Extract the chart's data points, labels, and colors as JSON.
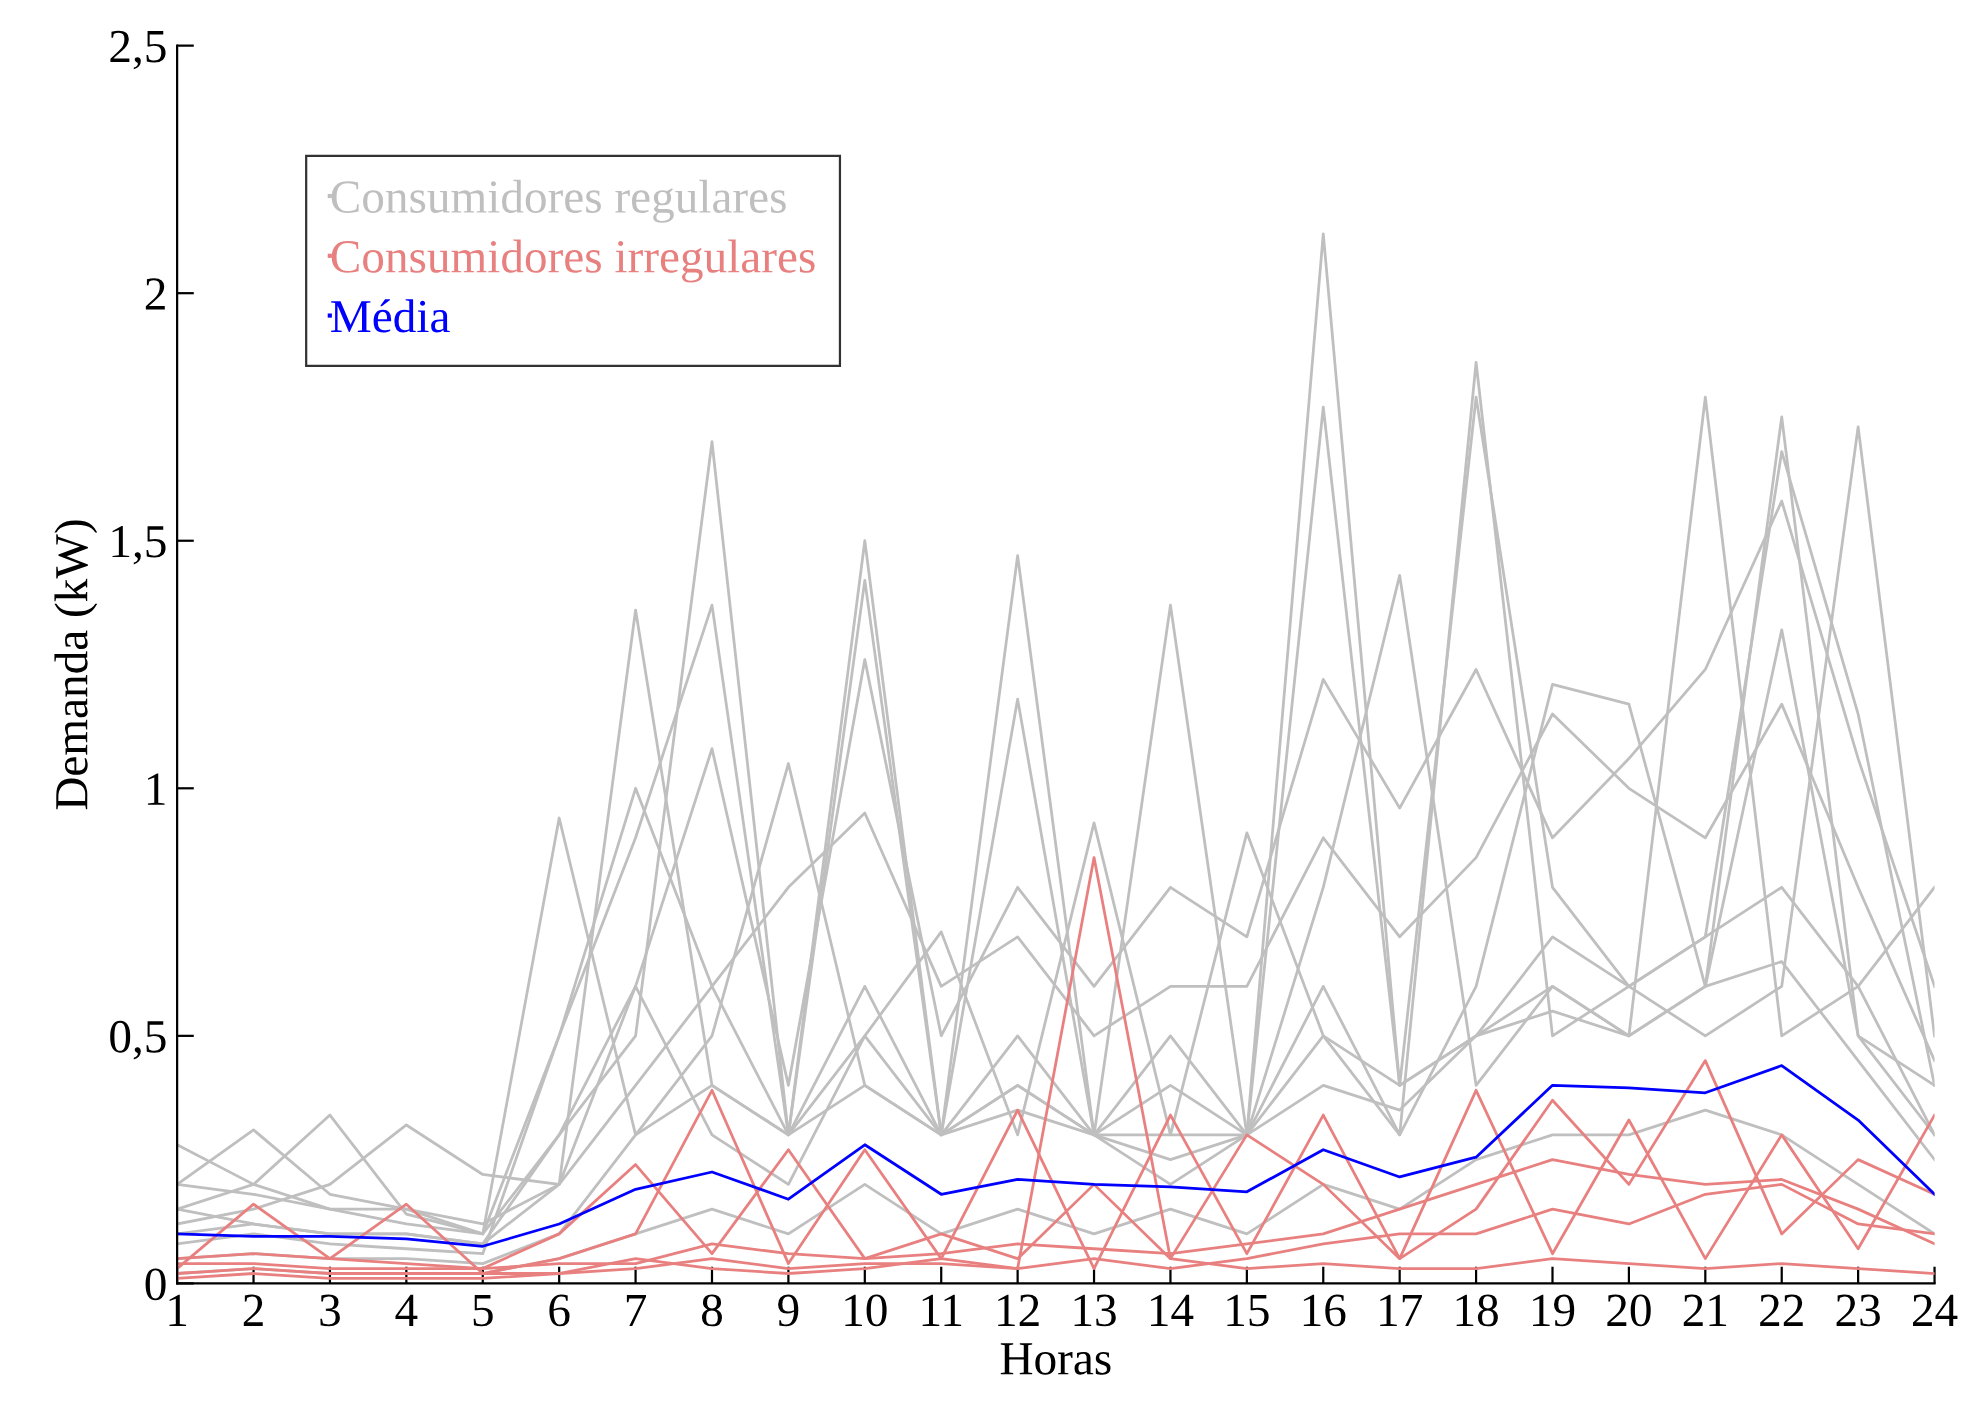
{
  "chart_data": {
    "type": "line",
    "xlabel": "Horas",
    "ylabel": "Demanda (kW)",
    "x": [
      1,
      2,
      3,
      4,
      5,
      6,
      7,
      8,
      9,
      10,
      11,
      12,
      13,
      14,
      15,
      16,
      17,
      18,
      19,
      20,
      21,
      22,
      23,
      24
    ],
    "xlim": [
      1,
      24
    ],
    "xticks": [
      1,
      2,
      3,
      4,
      5,
      6,
      7,
      8,
      9,
      10,
      11,
      12,
      13,
      14,
      15,
      16,
      17,
      18,
      19,
      20,
      21,
      22,
      23,
      24
    ],
    "ylim": [
      0,
      2.5
    ],
    "yticks": [
      0,
      {
        "value": 0.5,
        "label": "0,5"
      },
      1,
      {
        "value": 1.5,
        "label": "1,5"
      },
      2,
      {
        "value": 2.5,
        "label": "2,5"
      }
    ],
    "grid": false,
    "legend": "top left",
    "marker": "none",
    "line_style": "solid",
    "series": [
      {
        "name": "Consumidores regulares",
        "color": "#bfbfbf",
        "values": [
          0.28,
          0.2,
          0.15,
          0.12,
          0.1,
          0.3,
          0.5,
          1.7,
          0.3,
          0.4,
          0.3,
          0.5,
          0.3,
          0.2,
          0.3,
          2.12,
          0.4,
          0.5,
          0.6,
          0.5,
          0.6,
          1.75,
          0.5,
          0.4
        ]
      },
      {
        "color": "#bfbfbf",
        "values": [
          0.2,
          0.31,
          0.18,
          0.15,
          0.12,
          0.2,
          1.36,
          0.4,
          0.3,
          1.5,
          0.3,
          0.35,
          0.3,
          0.25,
          0.3,
          0.6,
          0.3,
          1.86,
          0.5,
          0.6,
          0.5,
          0.6,
          1.73,
          0.5
        ]
      },
      {
        "color": "#bfbfbf",
        "values": [
          0.15,
          0.2,
          0.34,
          0.14,
          0.1,
          0.94,
          0.3,
          0.5,
          1.05,
          0.4,
          0.3,
          1.47,
          0.3,
          1.37,
          0.3,
          0.8,
          1.43,
          0.4,
          0.6,
          0.5,
          1.79,
          0.5,
          0.6,
          0.8
        ]
      },
      {
        "color": "#bfbfbf",
        "values": [
          0.12,
          0.15,
          0.2,
          0.32,
          0.22,
          0.2,
          0.6,
          0.3,
          0.2,
          0.5,
          0.71,
          0.3,
          0.93,
          0.3,
          0.91,
          0.5,
          0.3,
          0.6,
          1.21,
          1.17,
          0.6,
          1.32,
          0.5,
          0.3
        ]
      },
      {
        "color": "#bfbfbf",
        "values": [
          0.2,
          0.18,
          0.15,
          0.15,
          0.1,
          0.5,
          0.9,
          1.37,
          0.3,
          1.42,
          0.3,
          1.18,
          0.3,
          0.5,
          0.3,
          1.77,
          0.4,
          1.79,
          0.8,
          0.6,
          0.7,
          1.68,
          1.15,
          0.4
        ]
      },
      {
        "color": "#bfbfbf",
        "values": [
          0.1,
          0.12,
          0.1,
          0.1,
          0.08,
          0.3,
          0.6,
          1.08,
          0.4,
          1.26,
          0.5,
          0.8,
          0.6,
          0.8,
          0.7,
          1.22,
          0.96,
          1.24,
          0.9,
          1.06,
          1.24,
          1.58,
          1.06,
          0.6
        ]
      },
      {
        "color": "#bfbfbf",
        "values": [
          0.08,
          0.1,
          0.08,
          0.07,
          0.06,
          0.5,
          1.0,
          0.6,
          0.8,
          0.95,
          0.6,
          0.7,
          0.5,
          0.6,
          0.6,
          0.9,
          0.7,
          0.86,
          1.15,
          1.0,
          0.9,
          1.17,
          0.8,
          0.45
        ]
      },
      {
        "color": "#bfbfbf",
        "values": [
          0.05,
          0.06,
          0.05,
          0.05,
          0.04,
          0.1,
          0.3,
          0.4,
          0.3,
          0.5,
          0.3,
          0.4,
          0.3,
          0.4,
          0.3,
          0.5,
          0.4,
          0.5,
          0.7,
          0.6,
          0.7,
          0.8,
          0.6,
          0.3
        ]
      },
      {
        "color": "#bfbfbf",
        "values": [
          0.02,
          0.03,
          0.02,
          0.02,
          0.02,
          0.05,
          0.1,
          0.15,
          0.1,
          0.2,
          0.1,
          0.15,
          0.1,
          0.15,
          0.1,
          0.2,
          0.15,
          0.25,
          0.3,
          0.3,
          0.35,
          0.3,
          0.2,
          0.1
        ]
      },
      {
        "color": "#bfbfbf",
        "values": [
          0.15,
          0.12,
          0.1,
          0.1,
          0.08,
          0.2,
          0.4,
          0.6,
          0.3,
          0.6,
          0.3,
          0.4,
          0.3,
          0.3,
          0.3,
          0.4,
          0.35,
          0.5,
          0.55,
          0.5,
          0.6,
          0.65,
          0.45,
          0.25
        ]
      },
      {
        "name": "Consumidores irregulares",
        "color": "#e88080",
        "values": [
          0.02,
          0.03,
          0.02,
          0.02,
          0.02,
          0.02,
          0.05,
          0.03,
          0.02,
          0.03,
          0.05,
          0.03,
          0.86,
          0.05,
          0.03,
          0.04,
          0.03,
          0.03,
          0.05,
          0.04,
          0.03,
          0.04,
          0.03,
          0.02
        ]
      },
      {
        "color": "#e88080",
        "values": [
          0.03,
          0.16,
          0.05,
          0.16,
          0.02,
          0.05,
          0.1,
          0.39,
          0.04,
          0.27,
          0.05,
          0.35,
          0.03,
          0.34,
          0.06,
          0.34,
          0.05,
          0.39,
          0.06,
          0.33,
          0.05,
          0.3,
          0.07,
          0.34
        ]
      },
      {
        "color": "#e88080",
        "values": [
          0.05,
          0.06,
          0.05,
          0.04,
          0.03,
          0.1,
          0.24,
          0.06,
          0.27,
          0.05,
          0.1,
          0.05,
          0.2,
          0.05,
          0.3,
          0.2,
          0.05,
          0.15,
          0.37,
          0.2,
          0.45,
          0.1,
          0.25,
          0.18
        ]
      },
      {
        "color": "#e88080",
        "values": [
          0.01,
          0.02,
          0.01,
          0.01,
          0.01,
          0.02,
          0.03,
          0.05,
          0.03,
          0.04,
          0.04,
          0.03,
          0.05,
          0.03,
          0.05,
          0.08,
          0.1,
          0.1,
          0.15,
          0.12,
          0.18,
          0.2,
          0.12,
          0.1
        ]
      },
      {
        "color": "#e88080",
        "values": [
          0.04,
          0.04,
          0.03,
          0.03,
          0.03,
          0.04,
          0.04,
          0.08,
          0.06,
          0.05,
          0.06,
          0.08,
          0.07,
          0.06,
          0.08,
          0.1,
          0.15,
          0.2,
          0.25,
          0.22,
          0.2,
          0.21,
          0.15,
          0.08
        ]
      },
      {
        "name": "Média",
        "color": "#0000ff",
        "values": [
          0.1,
          0.095,
          0.095,
          0.09,
          0.075,
          0.12,
          0.19,
          0.225,
          0.17,
          0.28,
          0.18,
          0.21,
          0.2,
          0.195,
          0.185,
          0.27,
          0.215,
          0.255,
          0.4,
          0.395,
          0.385,
          0.44,
          0.33,
          0.18
        ]
      }
    ]
  }
}
